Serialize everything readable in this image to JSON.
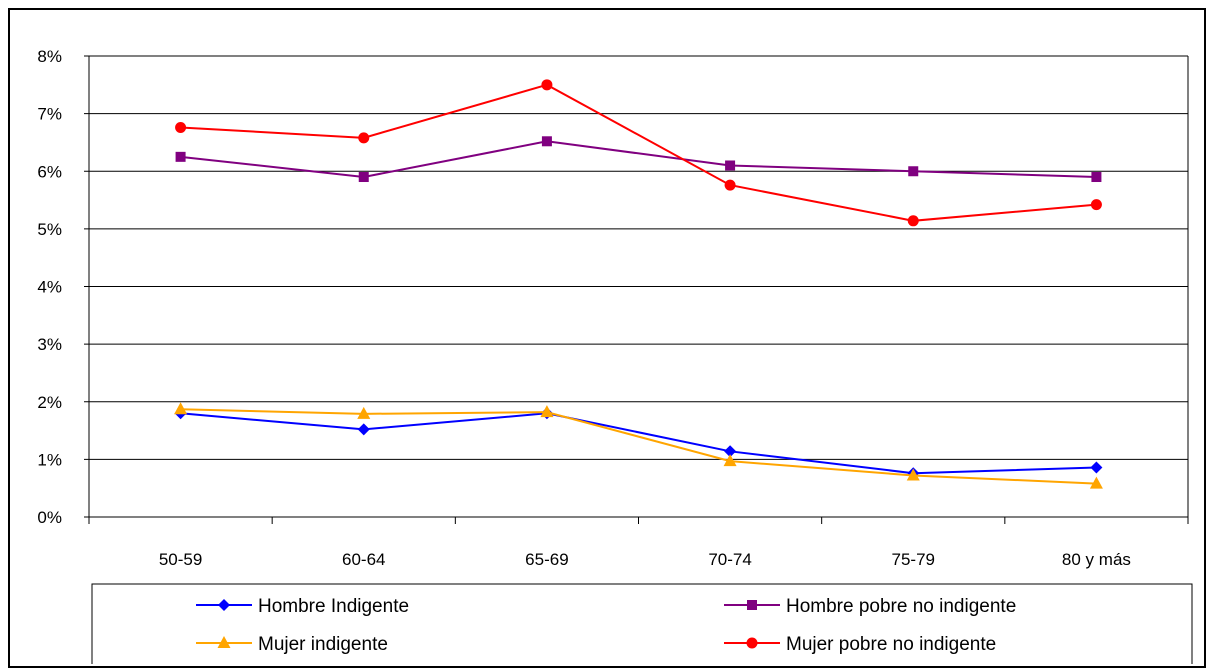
{
  "chart_data": {
    "type": "line",
    "categories": [
      "50-59",
      "60-64",
      "65-69",
      "70-74",
      "75-79",
      "80 y más"
    ],
    "y_ticks": [
      "0%",
      "1%",
      "2%",
      "3%",
      "4%",
      "5%",
      "6%",
      "7%",
      "8%"
    ],
    "ylim": [
      0,
      8
    ],
    "y_unit": "%",
    "grid": true,
    "legend_position": "bottom",
    "series": [
      {
        "name": "Hombre Indigente",
        "color": "#0000ff",
        "marker": "diamond",
        "values": [
          1.8,
          1.52,
          1.8,
          1.14,
          0.76,
          0.86
        ]
      },
      {
        "name": "Hombre pobre no indigente",
        "color": "#800080",
        "marker": "square",
        "values": [
          6.25,
          5.9,
          6.52,
          6.1,
          6.0,
          5.9
        ]
      },
      {
        "name": "Mujer indigente",
        "color": "#ffa500",
        "marker": "triangle",
        "values": [
          1.87,
          1.79,
          1.82,
          0.97,
          0.72,
          0.58
        ]
      },
      {
        "name": "Mujer pobre no indigente",
        "color": "#ff0000",
        "marker": "circle",
        "values": [
          6.76,
          6.58,
          7.5,
          5.76,
          5.14,
          5.42
        ]
      }
    ]
  }
}
